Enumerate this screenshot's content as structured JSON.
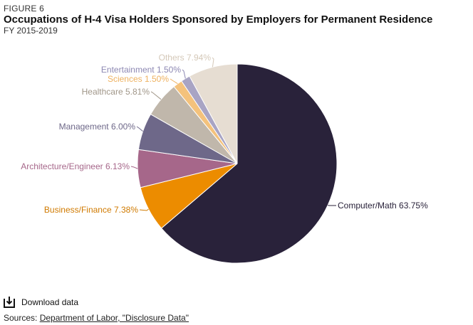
{
  "figure_label": "FIGURE 6",
  "title": "Occupations of H-4 Visa Holders Sponsored by Employers for Permanent Residence",
  "subtitle": "FY 2015-2019",
  "download_label": "Download data",
  "sources_prefix": "Sources:",
  "sources_link_text": "Department of Labor, \"Disclosure Data\"",
  "chart_data": {
    "type": "pie",
    "title": "Occupations of H-4 Visa Holders Sponsored by Employers for Permanent Residence",
    "subtitle": "FY 2015-2019",
    "slices": [
      {
        "label": "Computer/Math",
        "value": 63.75,
        "text": "Computer/Math 63.75%",
        "color": "#29223a",
        "text_color": "#29223a"
      },
      {
        "label": "Business/Finance",
        "value": 7.38,
        "text": "Business/Finance 7.38%",
        "color": "#ec8c00",
        "text_color": "#d07a00"
      },
      {
        "label": "Architecture/Engineer",
        "value": 6.13,
        "text": "Architecture/Engineer 6.13%",
        "color": "#a6678a",
        "text_color": "#a6678a"
      },
      {
        "label": "Management",
        "value": 6.0,
        "text": "Management 6.00%",
        "color": "#6e6889",
        "text_color": "#6e6889"
      },
      {
        "label": "Healthcare",
        "value": 5.81,
        "text": "Healthcare 5.81%",
        "color": "#c0b7ab",
        "text_color": "#a09688"
      },
      {
        "label": "Sciences",
        "value": 1.5,
        "text": "Sciences  1.50%",
        "color": "#f4c27c",
        "text_color": "#eeb15f"
      },
      {
        "label": "Entertainment",
        "value": 1.5,
        "text": "Entertainment 1.50%",
        "color": "#a8a4c4",
        "text_color": "#8d88b3"
      },
      {
        "label": "Others",
        "value": 7.94,
        "text": "Others 7.94%",
        "color": "#e6ddd2",
        "text_color": "#d4c8b8"
      }
    ]
  }
}
